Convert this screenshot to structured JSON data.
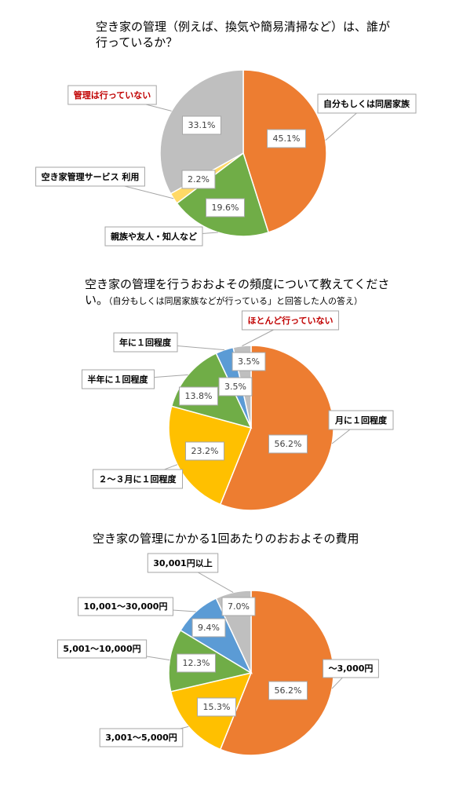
{
  "chart_data": [
    {
      "type": "pie",
      "title": "空き家の管理（例えば、換気や簡易清掃など）は、誰が行っているか？",
      "categories": [
        "自分もしくは同居家族",
        "親族や友人・知人など",
        "空き家管理サービス 利用",
        "管理は行っていない"
      ],
      "values": [
        45.1,
        19.6,
        2.2,
        33.1
      ],
      "value_labels": [
        "45.1%",
        "19.6%",
        "2.2%",
        "33.1%"
      ],
      "colors": [
        "#ed7d31",
        "#70ad47",
        "#ffd966",
        "#bfbfbf"
      ],
      "label_colors": [
        "#000000",
        "#000000",
        "#000000",
        "#c00000"
      ]
    },
    {
      "type": "pie",
      "title": "空き家の管理を行うおおよその頻度について教えてください。",
      "subtitle": "（自分もしくは同居家族などが行っている」と回答した人の答え）",
      "categories": [
        "月に１回程度",
        "２〜３月に１回程度",
        "半年に１回程度",
        "年に１回程度",
        "ほとんど行っていない"
      ],
      "values": [
        56.2,
        23.2,
        13.8,
        3.5,
        3.5
      ],
      "value_labels": [
        "56.2%",
        "23.2%",
        "13.8%",
        "3.5%",
        "3.5%"
      ],
      "colors": [
        "#ed7d31",
        "#ffc000",
        "#70ad47",
        "#5b9bd5",
        "#bfbfbf"
      ],
      "label_colors": [
        "#000000",
        "#000000",
        "#000000",
        "#000000",
        "#c00000"
      ]
    },
    {
      "type": "pie",
      "title": "空き家の管理にかかる1回あたりのおおよその費用",
      "categories": [
        "〜3,000円",
        "3,001〜5,000円",
        "5,001〜10,000円",
        "10,001〜30,000円",
        "30,001円以上"
      ],
      "values": [
        56.2,
        15.3,
        12.3,
        9.4,
        7.0
      ],
      "value_labels": [
        "56.2%",
        "15.3%",
        "12.3%",
        "9.4%",
        "7.0%"
      ],
      "colors": [
        "#ed7d31",
        "#ffc000",
        "#70ad47",
        "#5b9bd5",
        "#bfbfbf"
      ],
      "label_colors": [
        "#000000",
        "#000000",
        "#000000",
        "#000000",
        "#000000"
      ]
    }
  ]
}
